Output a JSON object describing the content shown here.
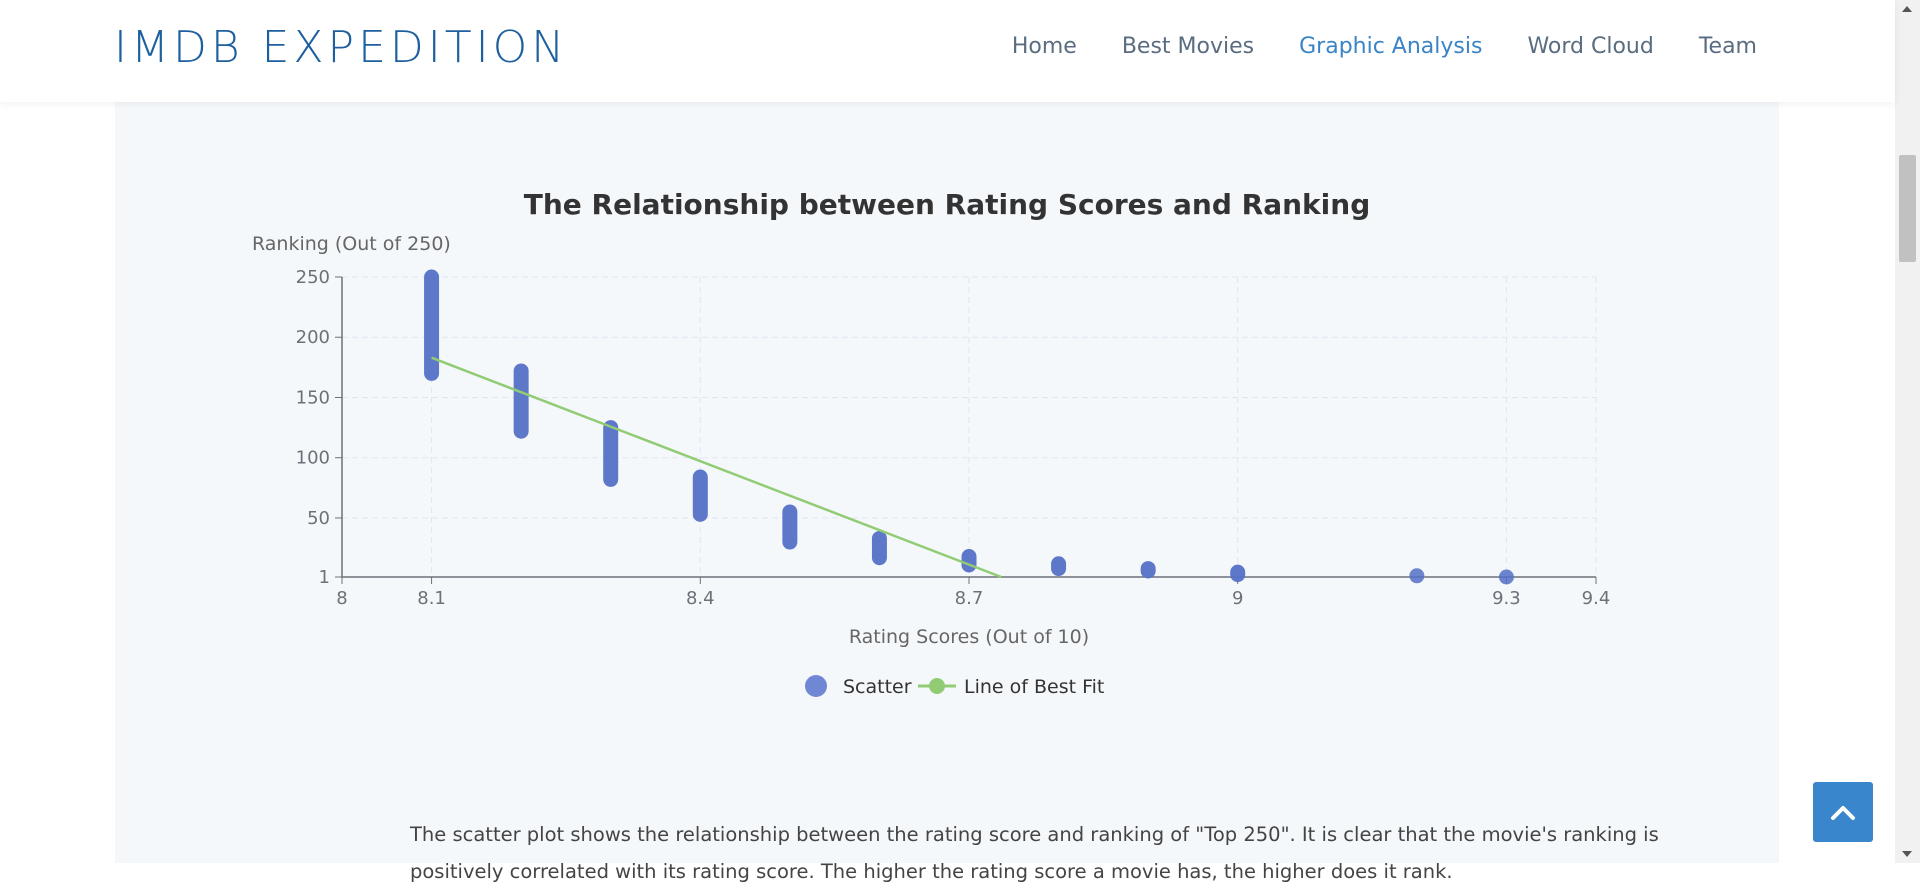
{
  "brand": "IMDB EXPEDITION",
  "nav": [
    {
      "label": "Home",
      "active": false
    },
    {
      "label": "Best Movies",
      "active": false
    },
    {
      "label": "Graphic Analysis",
      "active": true
    },
    {
      "label": "Word Cloud",
      "active": false
    },
    {
      "label": "Team",
      "active": false
    }
  ],
  "colors": {
    "scatter": "#5470c6",
    "fit": "#91cc75",
    "brand": "#1d5f9f",
    "accent": "#3a86cc"
  },
  "chart_data": {
    "type": "scatter",
    "title": "The Relationship between Rating Scores and Ranking",
    "xlabel": "Rating Scores (Out of 10)",
    "ylabel": "Ranking (Out of 250)",
    "xlim": [
      8,
      9.4
    ],
    "ylim": [
      1,
      250
    ],
    "xticks": [
      "8",
      "8.1",
      "8.4",
      "8.7",
      "9",
      "9.3",
      "9.4"
    ],
    "yticks": [
      "1",
      "50",
      "100",
      "150",
      "200",
      "250"
    ],
    "grid": true,
    "legend": {
      "position": "bottom-center",
      "items": [
        "Scatter",
        "Line of Best Fit"
      ]
    },
    "series": [
      {
        "name": "Scatter",
        "type": "scatter",
        "clusters": [
          {
            "x": 8.1,
            "ymin": 170,
            "ymax": 250
          },
          {
            "x": 8.2,
            "ymin": 122,
            "ymax": 172
          },
          {
            "x": 8.3,
            "ymin": 82,
            "ymax": 125
          },
          {
            "x": 8.4,
            "ymin": 53,
            "ymax": 84
          },
          {
            "x": 8.5,
            "ymin": 30,
            "ymax": 55
          },
          {
            "x": 8.6,
            "ymin": 17,
            "ymax": 33
          },
          {
            "x": 8.7,
            "ymin": 11,
            "ymax": 18
          },
          {
            "x": 8.8,
            "ymin": 8,
            "ymax": 12
          },
          {
            "x": 8.9,
            "ymin": 6,
            "ymax": 8
          },
          {
            "x": 9.0,
            "ymin": 3,
            "ymax": 5
          },
          {
            "x": 9.2,
            "ymin": 2,
            "ymax": 2
          },
          {
            "x": 9.3,
            "ymin": 1,
            "ymax": 1
          }
        ]
      },
      {
        "name": "Line of Best Fit",
        "type": "line",
        "points": [
          [
            8.1,
            183
          ],
          [
            8.736,
            1
          ]
        ]
      }
    ]
  },
  "description": "The scatter plot shows the relationship between the rating score and ranking of \"Top 250\". It is clear that the movie's ranking is positively correlated with its rating score. The higher the rating score a movie has, the higher does it rank."
}
